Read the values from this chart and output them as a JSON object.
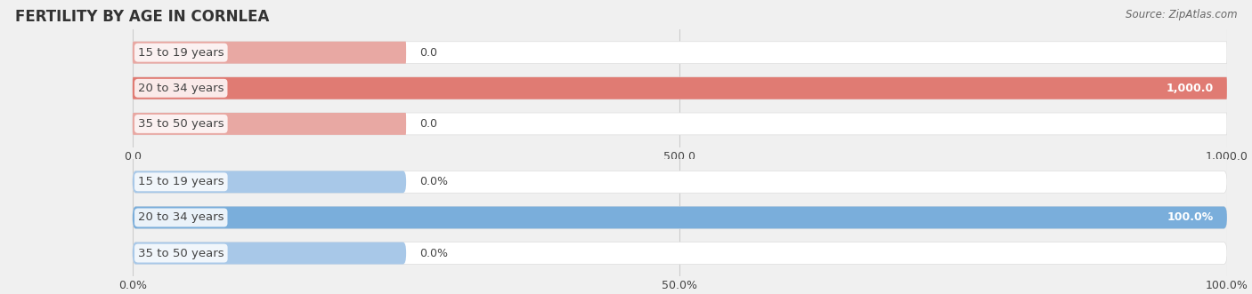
{
  "title": "FERTILITY BY AGE IN CORNLEA",
  "source": "Source: ZipAtlas.com",
  "top_chart": {
    "categories": [
      "15 to 19 years",
      "20 to 34 years",
      "35 to 50 years"
    ],
    "values": [
      0.0,
      1000.0,
      0.0
    ],
    "value_labels": [
      "0.0",
      "1,000.0",
      "0.0"
    ],
    "bar_color_full": "#e07b73",
    "bar_color_stub": "#e8a8a3",
    "xlim": [
      0,
      1000
    ],
    "xticks": [
      0.0,
      500.0,
      1000.0
    ],
    "xtick_labels": [
      "0.0",
      "500.0",
      "1,000.0"
    ]
  },
  "bottom_chart": {
    "categories": [
      "15 to 19 years",
      "20 to 34 years",
      "35 to 50 years"
    ],
    "values": [
      0.0,
      100.0,
      0.0
    ],
    "value_labels": [
      "0.0%",
      "100.0%",
      "0.0%"
    ],
    "bar_color_full": "#7aaedb",
    "bar_color_stub": "#a8c8e8",
    "xlim": [
      0,
      100
    ],
    "xticks": [
      0.0,
      50.0,
      100.0
    ],
    "xtick_labels": [
      "0.0%",
      "50.0%",
      "100.0%"
    ]
  },
  "bar_height": 0.62,
  "category_fontsize": 9.5,
  "value_fontsize": 9.0,
  "title_fontsize": 12,
  "source_fontsize": 8.5,
  "tick_fontsize": 9.0,
  "fig_bg_color": "#f0f0f0",
  "bar_bg_color": "#ffffff",
  "bar_bg_edge_color": "#dddddd",
  "grid_color": "#cccccc",
  "text_dark": "#444444",
  "text_white": "#ffffff"
}
